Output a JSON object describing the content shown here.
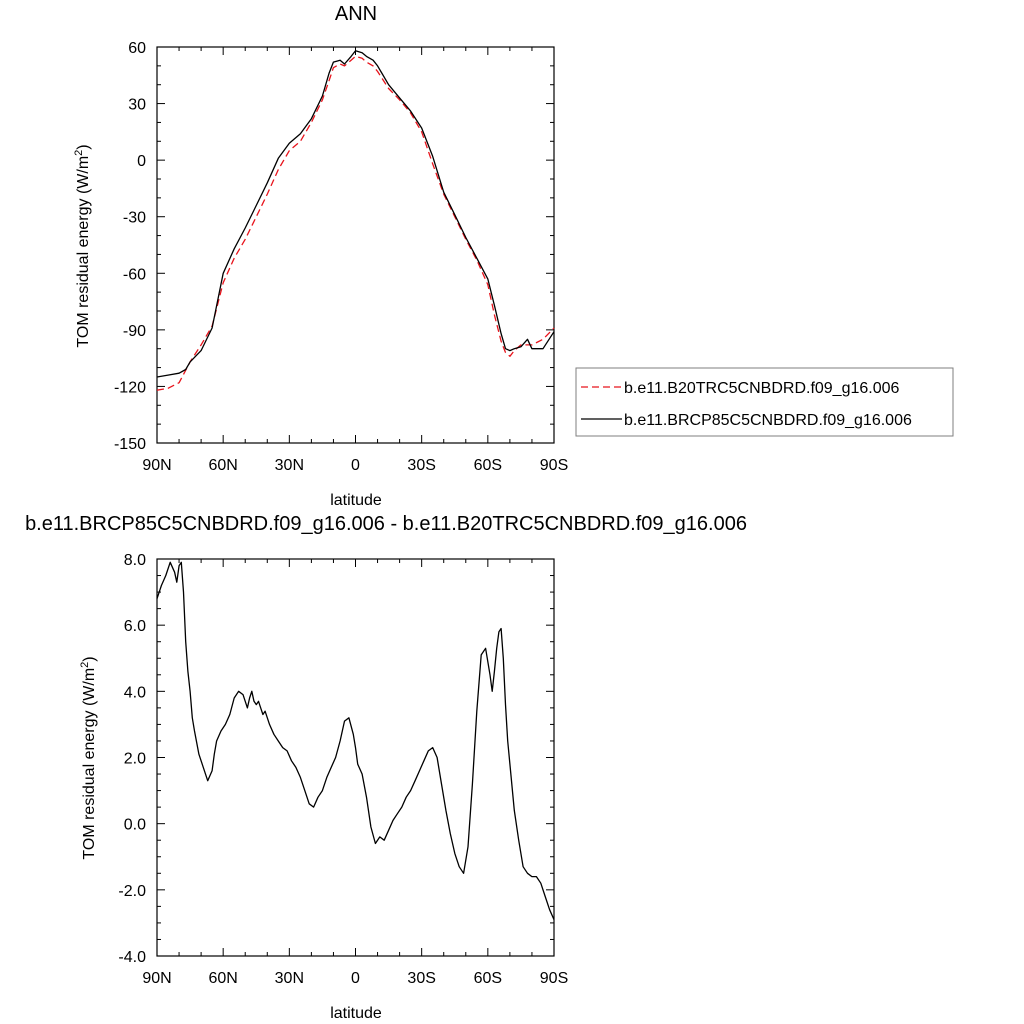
{
  "chart_data": [
    {
      "type": "line",
      "title": "ANN",
      "xlabel": "latitude",
      "ylabel": "TOM residual energy (W/m",
      "ylabel_sup": "2",
      "ylabel_close": ")",
      "xlim": [
        -90,
        90
      ],
      "ylim": [
        -150,
        60
      ],
      "x_ticks": [
        -90,
        -60,
        -30,
        0,
        30,
        60,
        90
      ],
      "x_tick_labels": [
        "90N",
        "60N",
        "30N",
        "0",
        "30S",
        "60S",
        "90S"
      ],
      "y_ticks": [
        -150,
        -120,
        -90,
        -60,
        -30,
        0,
        30,
        60
      ],
      "y_tick_labels": [
        "-150",
        "-120",
        "-90",
        "-60",
        "-30",
        "0",
        "30",
        "60"
      ],
      "legend_position": "right",
      "series": [
        {
          "name": "b.e11.B20TRC5CNBDRD.f09_g16.006",
          "color": "#e8141c",
          "dash": "dashed",
          "x": [
            -90,
            -85,
            -80,
            -75,
            -70,
            -65,
            -60,
            -55,
            -50,
            -45,
            -40,
            -35,
            -30,
            -25,
            -20,
            -15,
            -12,
            -10,
            -7,
            -5,
            -2,
            0,
            3,
            5,
            8,
            10,
            15,
            20,
            25,
            30,
            35,
            40,
            45,
            50,
            55,
            60,
            63,
            66,
            68,
            70,
            72,
            75,
            80,
            85,
            90
          ],
          "y": [
            -122,
            -121,
            -118,
            -107,
            -98,
            -88,
            -65,
            -52,
            -42,
            -30,
            -18,
            -5,
            5,
            10,
            20,
            32,
            42,
            49,
            51,
            50,
            53,
            55,
            54,
            52,
            50,
            47,
            38,
            32,
            25,
            15,
            -2,
            -18,
            -30,
            -42,
            -53,
            -66,
            -82,
            -96,
            -102,
            -104,
            -101,
            -98,
            -98,
            -95,
            -89
          ]
        },
        {
          "name": "b.e11.BRCP85C5CNBDRD.f09_g16.006",
          "color": "#000000",
          "dash": "solid",
          "x": [
            -90,
            -85,
            -80,
            -77,
            -75,
            -70,
            -65,
            -60,
            -55,
            -50,
            -45,
            -40,
            -35,
            -30,
            -25,
            -20,
            -15,
            -12,
            -10,
            -7,
            -5,
            -2,
            0,
            3,
            5,
            8,
            10,
            15,
            20,
            25,
            30,
            35,
            40,
            45,
            50,
            55,
            60,
            63,
            66,
            68,
            70,
            72,
            75,
            78,
            80,
            85,
            90
          ],
          "y": [
            -115,
            -114,
            -113,
            -111,
            -107,
            -101,
            -89,
            -60,
            -47,
            -36,
            -24,
            -12,
            1,
            9,
            14,
            22,
            34,
            46,
            52,
            53,
            51,
            55,
            58,
            57,
            55,
            53,
            50,
            40,
            33,
            26,
            17,
            2,
            -17,
            -29,
            -41,
            -52,
            -63,
            -77,
            -92,
            -100,
            -101,
            -100,
            -99,
            -95,
            -100,
            -100,
            -91
          ]
        }
      ]
    },
    {
      "type": "line",
      "title": "b.e11.BRCP85C5CNBDRD.f09_g16.006 - b.e11.B20TRC5CNBDRD.f09_g16.006",
      "xlabel": "latitude",
      "ylabel": "TOM residual energy (W/m",
      "ylabel_sup": "2",
      "ylabel_close": ")",
      "xlim": [
        -90,
        90
      ],
      "ylim": [
        -4,
        8
      ],
      "x_ticks": [
        -90,
        -60,
        -30,
        0,
        30,
        60,
        90
      ],
      "x_tick_labels": [
        "90N",
        "60N",
        "30N",
        "0",
        "30S",
        "60S",
        "90S"
      ],
      "y_ticks": [
        -4,
        -2,
        0,
        2,
        4,
        6,
        8
      ],
      "y_tick_labels": [
        "-4.0",
        "-2.0",
        "0.0",
        "2.0",
        "4.0",
        "6.0",
        "8.0"
      ],
      "series": [
        {
          "name": "",
          "color": "#000000",
          "dash": "solid",
          "x": [
            -90,
            -88,
            -86,
            -84,
            -82,
            -81,
            -80,
            -79,
            -78,
            -77,
            -76,
            -75,
            -74,
            -73,
            -71,
            -69,
            -67,
            -65,
            -64,
            -63,
            -61,
            -59,
            -57,
            -55,
            -53,
            -51,
            -49,
            -48,
            -47,
            -46,
            -45,
            -44,
            -43,
            -42,
            -41,
            -39,
            -37,
            -35,
            -33,
            -31,
            -29,
            -27,
            -25,
            -23,
            -21,
            -19,
            -17,
            -15,
            -13,
            -11,
            -9,
            -7,
            -5,
            -3,
            -1,
            0,
            1,
            3,
            5,
            7,
            9,
            11,
            13,
            15,
            17,
            19,
            21,
            23,
            25,
            27,
            29,
            31,
            33,
            35,
            37,
            39,
            41,
            43,
            45,
            47,
            49,
            51,
            53,
            55,
            57,
            59,
            61,
            62,
            63,
            64,
            65,
            66,
            67,
            68,
            69,
            70,
            72,
            74,
            76,
            78,
            80,
            82,
            84,
            86,
            88,
            90
          ],
          "y": [
            6.8,
            7.2,
            7.5,
            7.9,
            7.6,
            7.3,
            7.8,
            7.9,
            7.0,
            5.5,
            4.6,
            4.0,
            3.2,
            2.8,
            2.1,
            1.7,
            1.3,
            1.6,
            2.1,
            2.5,
            2.8,
            3.0,
            3.3,
            3.8,
            4.0,
            3.9,
            3.5,
            3.8,
            4.0,
            3.7,
            3.6,
            3.7,
            3.5,
            3.3,
            3.4,
            3.0,
            2.7,
            2.5,
            2.3,
            2.2,
            1.9,
            1.7,
            1.4,
            1.0,
            0.6,
            0.5,
            0.8,
            1.0,
            1.4,
            1.7,
            2.0,
            2.5,
            3.1,
            3.2,
            2.7,
            2.3,
            1.8,
            1.5,
            0.8,
            -0.1,
            -0.6,
            -0.4,
            -0.5,
            -0.2,
            0.1,
            0.3,
            0.5,
            0.8,
            1.0,
            1.3,
            1.6,
            1.9,
            2.2,
            2.3,
            2.0,
            1.2,
            0.4,
            -0.3,
            -0.9,
            -1.3,
            -1.5,
            -0.7,
            1.2,
            3.4,
            5.1,
            5.3,
            4.5,
            4.0,
            4.6,
            5.3,
            5.8,
            5.9,
            5.0,
            3.6,
            2.5,
            1.8,
            0.4,
            -0.5,
            -1.3,
            -1.5,
            -1.6,
            -1.6,
            -1.8,
            -2.2,
            -2.6,
            -2.9
          ]
        }
      ]
    }
  ]
}
